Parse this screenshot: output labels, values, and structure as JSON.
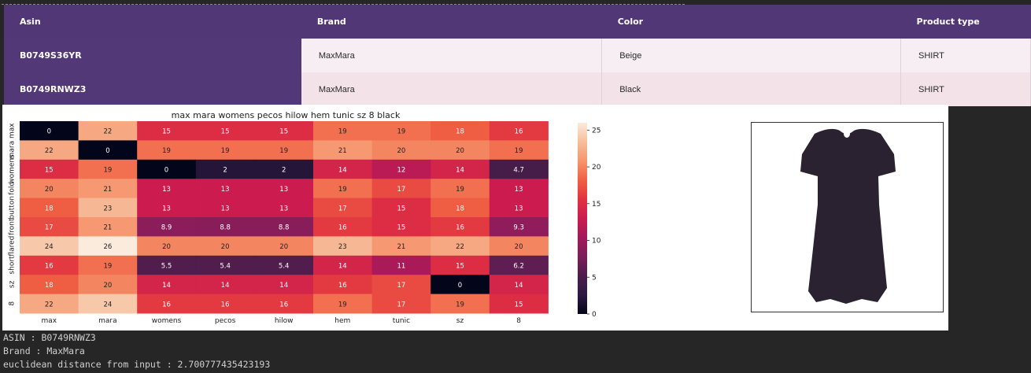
{
  "table": {
    "headers": [
      "Asin",
      "Brand",
      "Color",
      "Product type"
    ],
    "rows": [
      {
        "asin": "B0749S36YR",
        "brand": "MaxMara",
        "color": "Beige",
        "product_type": "SHIRT"
      },
      {
        "asin": "B0749RNWZ3",
        "brand": "MaxMara",
        "color": "Black",
        "product_type": "SHIRT"
      }
    ]
  },
  "chart_data": {
    "type": "heatmap",
    "title": "max mara womens pecos hilow hem tunic sz 8 black",
    "x_labels": [
      "max",
      "mara",
      "womens",
      "pecos",
      "hilow",
      "hem",
      "tunic",
      "sz",
      "8"
    ],
    "y_labels": [
      "max",
      "mara",
      "womens",
      "fold",
      "button",
      "front",
      "flared",
      "short",
      "sz",
      "8"
    ],
    "values": [
      [
        0,
        22,
        15,
        15,
        15,
        19,
        19,
        18,
        16
      ],
      [
        22,
        0,
        19,
        19,
        19,
        21,
        20,
        20,
        19
      ],
      [
        15,
        19,
        0,
        2,
        2,
        14,
        12,
        14,
        4.7
      ],
      [
        20,
        21,
        13,
        13,
        13,
        19,
        17,
        19,
        13
      ],
      [
        18,
        23,
        13,
        13,
        13,
        17,
        15,
        18,
        13
      ],
      [
        17,
        21,
        8.9,
        8.8,
        8.8,
        16,
        15,
        16,
        9.3
      ],
      [
        24,
        26,
        20,
        20,
        20,
        23,
        21,
        22,
        20
      ],
      [
        16,
        19,
        5.5,
        5.4,
        5.4,
        14,
        11,
        15,
        6.2
      ],
      [
        18,
        20,
        14,
        14,
        14,
        16,
        17,
        0,
        14
      ],
      [
        22,
        24,
        16,
        16,
        16,
        19,
        17,
        19,
        15
      ]
    ],
    "colorbar": {
      "ticks": [
        0,
        5,
        10,
        15,
        20,
        25
      ],
      "range": [
        0,
        26
      ]
    },
    "colormap": [
      "#03051a",
      "#2e1a42",
      "#4c1d4b",
      "#7a1f5a",
      "#a11a5b",
      "#cb1b4f",
      "#e13342",
      "#f06043",
      "#f6956e",
      "#f6be9b",
      "#faebdd"
    ],
    "value_label": "number"
  },
  "image": {
    "alt": "black short-sleeve tunic dress product photo",
    "dress_color": "#2a2230"
  },
  "console": {
    "line1": "ASIN : B0749RNWZ3",
    "line2": "Brand : MaxMara",
    "line3": "euclidean distance from input : 2.700777435423193"
  }
}
